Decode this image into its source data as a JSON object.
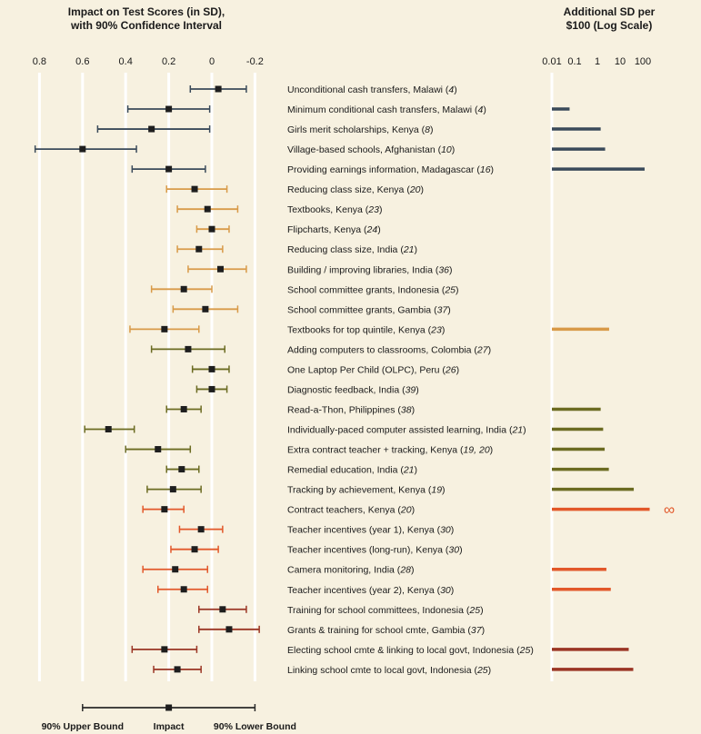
{
  "chart_data": [
    {
      "type": "forest",
      "title_lines": [
        "Impact on Test Scores (in SD),",
        "with 90% Confidence Interval"
      ],
      "x_ticks": [
        "0.8",
        "0.6",
        "0.4",
        "0.2",
        "0",
        "-0.2"
      ],
      "x_tick_values": [
        0.8,
        0.6,
        0.4,
        0.2,
        0,
        -0.2
      ],
      "xlim": [
        0.8,
        -0.2
      ],
      "grid": true,
      "points": [
        {
          "label": "Unconditional cash transfers, Malawi (",
          "ref": "4",
          "group": "cash",
          "impact": -0.03,
          "upper": 0.1,
          "lower": -0.16
        },
        {
          "label": "Minimum conditional cash transfers, Malawi (",
          "ref": "4",
          "group": "cash",
          "impact": 0.2,
          "upper": 0.39,
          "lower": 0.01
        },
        {
          "label": "Girls merit scholarships, Kenya (",
          "ref": "8",
          "group": "cash",
          "impact": 0.28,
          "upper": 0.53,
          "lower": 0.01
        },
        {
          "label": "Village-based schools, Afghanistan (",
          "ref": "10",
          "group": "cash",
          "impact": 0.6,
          "upper": 0.82,
          "lower": 0.35
        },
        {
          "label": "Providing earnings information, Madagascar (",
          "ref": "16",
          "group": "cash",
          "impact": 0.2,
          "upper": 0.37,
          "lower": 0.03
        },
        {
          "label": "Reducing class size, Kenya (",
          "ref": "20",
          "group": "inputs",
          "impact": 0.08,
          "upper": 0.21,
          "lower": -0.07
        },
        {
          "label": "Textbooks, Kenya (",
          "ref": "23",
          "group": "inputs",
          "impact": 0.02,
          "upper": 0.16,
          "lower": -0.12
        },
        {
          "label": "Flipcharts, Kenya (",
          "ref": "24",
          "group": "inputs",
          "impact": 0.0,
          "upper": 0.07,
          "lower": -0.08
        },
        {
          "label": "Reducing class size, India (",
          "ref": "21",
          "group": "inputs",
          "impact": 0.06,
          "upper": 0.16,
          "lower": -0.05
        },
        {
          "label": "Building / improving libraries, India (",
          "ref": "36",
          "group": "inputs",
          "impact": -0.04,
          "upper": 0.11,
          "lower": -0.16
        },
        {
          "label": "School committee grants, Indonesia (",
          "ref": "25",
          "group": "inputs",
          "impact": 0.13,
          "upper": 0.28,
          "lower": 0.0
        },
        {
          "label": "School committee grants, Gambia (",
          "ref": "37",
          "group": "inputs",
          "impact": 0.03,
          "upper": 0.18,
          "lower": -0.12
        },
        {
          "label": "Textbooks for top quintile, Kenya (",
          "ref": "23",
          "group": "inputs",
          "impact": 0.22,
          "upper": 0.38,
          "lower": 0.06
        },
        {
          "label": "Adding computers to classrooms, Colombia (",
          "ref": "27",
          "group": "pedagogy",
          "impact": 0.11,
          "upper": 0.28,
          "lower": -0.06
        },
        {
          "label": "One Laptop Per Child (OLPC), Peru (",
          "ref": "26",
          "group": "pedagogy",
          "impact": 0.0,
          "upper": 0.09,
          "lower": -0.08
        },
        {
          "label": "Diagnostic feedback, India (",
          "ref": "39",
          "group": "pedagogy",
          "impact": 0.0,
          "upper": 0.07,
          "lower": -0.07
        },
        {
          "label": "Read-a-Thon, Philippines (",
          "ref": "38",
          "group": "pedagogy",
          "impact": 0.13,
          "upper": 0.21,
          "lower": 0.05
        },
        {
          "label": "Individually-paced computer assisted learning, India (",
          "ref": "21",
          "group": "pedagogy",
          "impact": 0.48,
          "upper": 0.59,
          "lower": 0.36
        },
        {
          "label": "Extra contract teacher + tracking, Kenya (",
          "ref": "19, 20",
          "group": "pedagogy",
          "impact": 0.25,
          "upper": 0.4,
          "lower": 0.1
        },
        {
          "label": "Remedial education, India (",
          "ref": "21",
          "group": "pedagogy",
          "impact": 0.14,
          "upper": 0.21,
          "lower": 0.06
        },
        {
          "label": "Tracking by achievement, Kenya (",
          "ref": "19",
          "group": "pedagogy",
          "impact": 0.18,
          "upper": 0.3,
          "lower": 0.05
        },
        {
          "label": "Contract teachers, Kenya (",
          "ref": "20",
          "group": "incentives",
          "impact": 0.22,
          "upper": 0.32,
          "lower": 0.13
        },
        {
          "label": "Teacher incentives (year 1), Kenya (",
          "ref": "30",
          "group": "incentives",
          "impact": 0.05,
          "upper": 0.15,
          "lower": -0.05
        },
        {
          "label": "Teacher incentives (long-run), Kenya (",
          "ref": "30",
          "group": "incentives",
          "impact": 0.08,
          "upper": 0.19,
          "lower": -0.03
        },
        {
          "label": "Camera monitoring, India (",
          "ref": "28",
          "group": "incentives",
          "impact": 0.17,
          "upper": 0.32,
          "lower": 0.02
        },
        {
          "label": "Teacher incentives (year 2), Kenya (",
          "ref": "30",
          "group": "incentives",
          "impact": 0.13,
          "upper": 0.25,
          "lower": 0.02
        },
        {
          "label": "Training for school committees, Indonesia (",
          "ref": "25",
          "group": "community",
          "impact": -0.05,
          "upper": 0.06,
          "lower": -0.16
        },
        {
          "label": "Grants & training for school cmte, Gambia (",
          "ref": "37",
          "group": "community",
          "impact": -0.08,
          "upper": 0.06,
          "lower": -0.22
        },
        {
          "label": "Electing school cmte & linking to local govt, Indonesia (",
          "ref": "25",
          "group": "community",
          "impact": 0.22,
          "upper": 0.37,
          "lower": 0.07
        },
        {
          "label": "Linking school cmte to local govt, Indonesia (",
          "ref": "25",
          "group": "community",
          "impact": 0.16,
          "upper": 0.27,
          "lower": 0.05
        }
      ]
    },
    {
      "type": "bar",
      "title_lines": [
        "Additional SD per",
        "$100 (Log Scale)"
      ],
      "x_ticks": [
        "0.01",
        "0.1",
        "1",
        "10",
        "100"
      ],
      "x_tick_values": [
        0.01,
        0.1,
        1,
        10,
        100
      ],
      "scale": "log",
      "baseline": 0.01,
      "bars": [
        {
          "row": 1,
          "value": 0.06,
          "group": "cash"
        },
        {
          "row": 2,
          "value": 1.4,
          "group": "cash"
        },
        {
          "row": 3,
          "value": 2.2,
          "group": "cash"
        },
        {
          "row": 4,
          "value": 120,
          "group": "cash"
        },
        {
          "row": 12,
          "value": 3.3,
          "group": "inputs"
        },
        {
          "row": 16,
          "value": 1.4,
          "group": "pedagogy"
        },
        {
          "row": 17,
          "value": 1.8,
          "group": "pedagogy"
        },
        {
          "row": 18,
          "value": 2.1,
          "group": "pedagogy"
        },
        {
          "row": 19,
          "value": 3.2,
          "group": "pedagogy"
        },
        {
          "row": 20,
          "value": 40,
          "group": "pedagogy"
        },
        {
          "row": 21,
          "value": 200,
          "group": "incentives",
          "infinite": true
        },
        {
          "row": 24,
          "value": 2.5,
          "group": "incentives"
        },
        {
          "row": 25,
          "value": 3.9,
          "group": "incentives"
        },
        {
          "row": 28,
          "value": 24,
          "group": "community"
        },
        {
          "row": 29,
          "value": 38,
          "group": "community"
        }
      ],
      "infinity_label": "∞"
    }
  ],
  "group_colors": {
    "cash": "#3a4a5a",
    "inputs": "#d89a48",
    "pedagogy": "#6b6b22",
    "incentives": "#e2582a",
    "community": "#9a3524"
  },
  "legend": {
    "upper_label": "90% Upper Bound",
    "impact_label": "Impact",
    "lower_label": "90% Lower Bound",
    "example": {
      "impact": 0.2,
      "upper": 0.6,
      "lower": -0.2
    },
    "color": "#2a2a2a"
  }
}
